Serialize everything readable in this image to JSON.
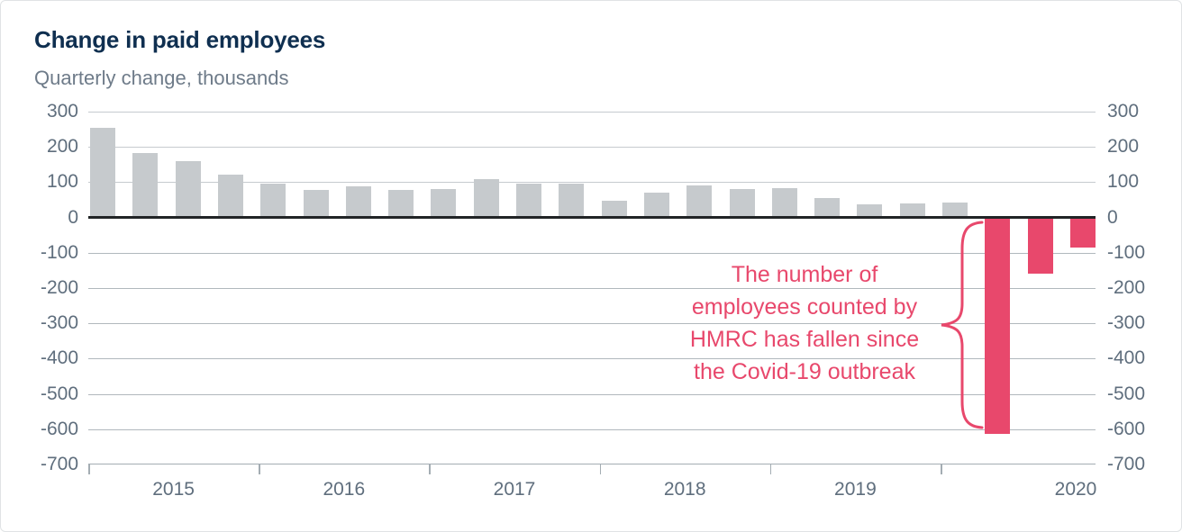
{
  "title": "Change in paid employees",
  "subtitle": "Quarterly change, thousands",
  "annotation": {
    "lines": [
      "The number of",
      "employees counted by",
      "HMRC has fallen since",
      "the Covid-19 outbreak"
    ]
  },
  "colors": {
    "accent_pink": "#e8486c",
    "bar_gray": "#c6cacd",
    "title_navy": "#0f2f50",
    "axis_label_gray": "#5f6e7d",
    "grid_positive": "#c6cbcf",
    "grid_negative": "#b1b8bd",
    "zero_line": "#212426"
  },
  "chart_data": {
    "type": "bar",
    "title": "Change in paid employees",
    "subtitle": "Quarterly change, thousands",
    "ylabel": "Quarterly change, thousands",
    "xlabel": "",
    "x": [
      "2015 Q1",
      "2015 Q2",
      "2015 Q3",
      "2015 Q4",
      "2016 Q1",
      "2016 Q2",
      "2016 Q3",
      "2016 Q4",
      "2017 Q1",
      "2017 Q2",
      "2017 Q3",
      "2017 Q4",
      "2018 Q1",
      "2018 Q2",
      "2018 Q3",
      "2018 Q4",
      "2019 Q1",
      "2019 Q2",
      "2019 Q3",
      "2019 Q4",
      "2020 Q1",
      "2020 Q2",
      "2020 Q3",
      "2020 Q4"
    ],
    "values": [
      253,
      182,
      160,
      122,
      97,
      79,
      89,
      79,
      80,
      108,
      95,
      95,
      48,
      71,
      90,
      81,
      84,
      55,
      36,
      40,
      42,
      -610,
      -158,
      -83
    ],
    "year_labels": [
      "2015",
      "2016",
      "2017",
      "2018",
      "2019",
      "2020"
    ],
    "yticks": [
      300,
      200,
      100,
      0,
      -100,
      -200,
      -300,
      -400,
      -500,
      -600,
      -700
    ],
    "ylim": [
      -700,
      300
    ],
    "grid": "horizontal",
    "legend": "none",
    "default_color": "#c6cacd",
    "highlight_color": "#e8486c",
    "highlight_from_index": 21,
    "annotation": "The number of employees counted by HMRC has fallen since the Covid-19 outbreak"
  }
}
